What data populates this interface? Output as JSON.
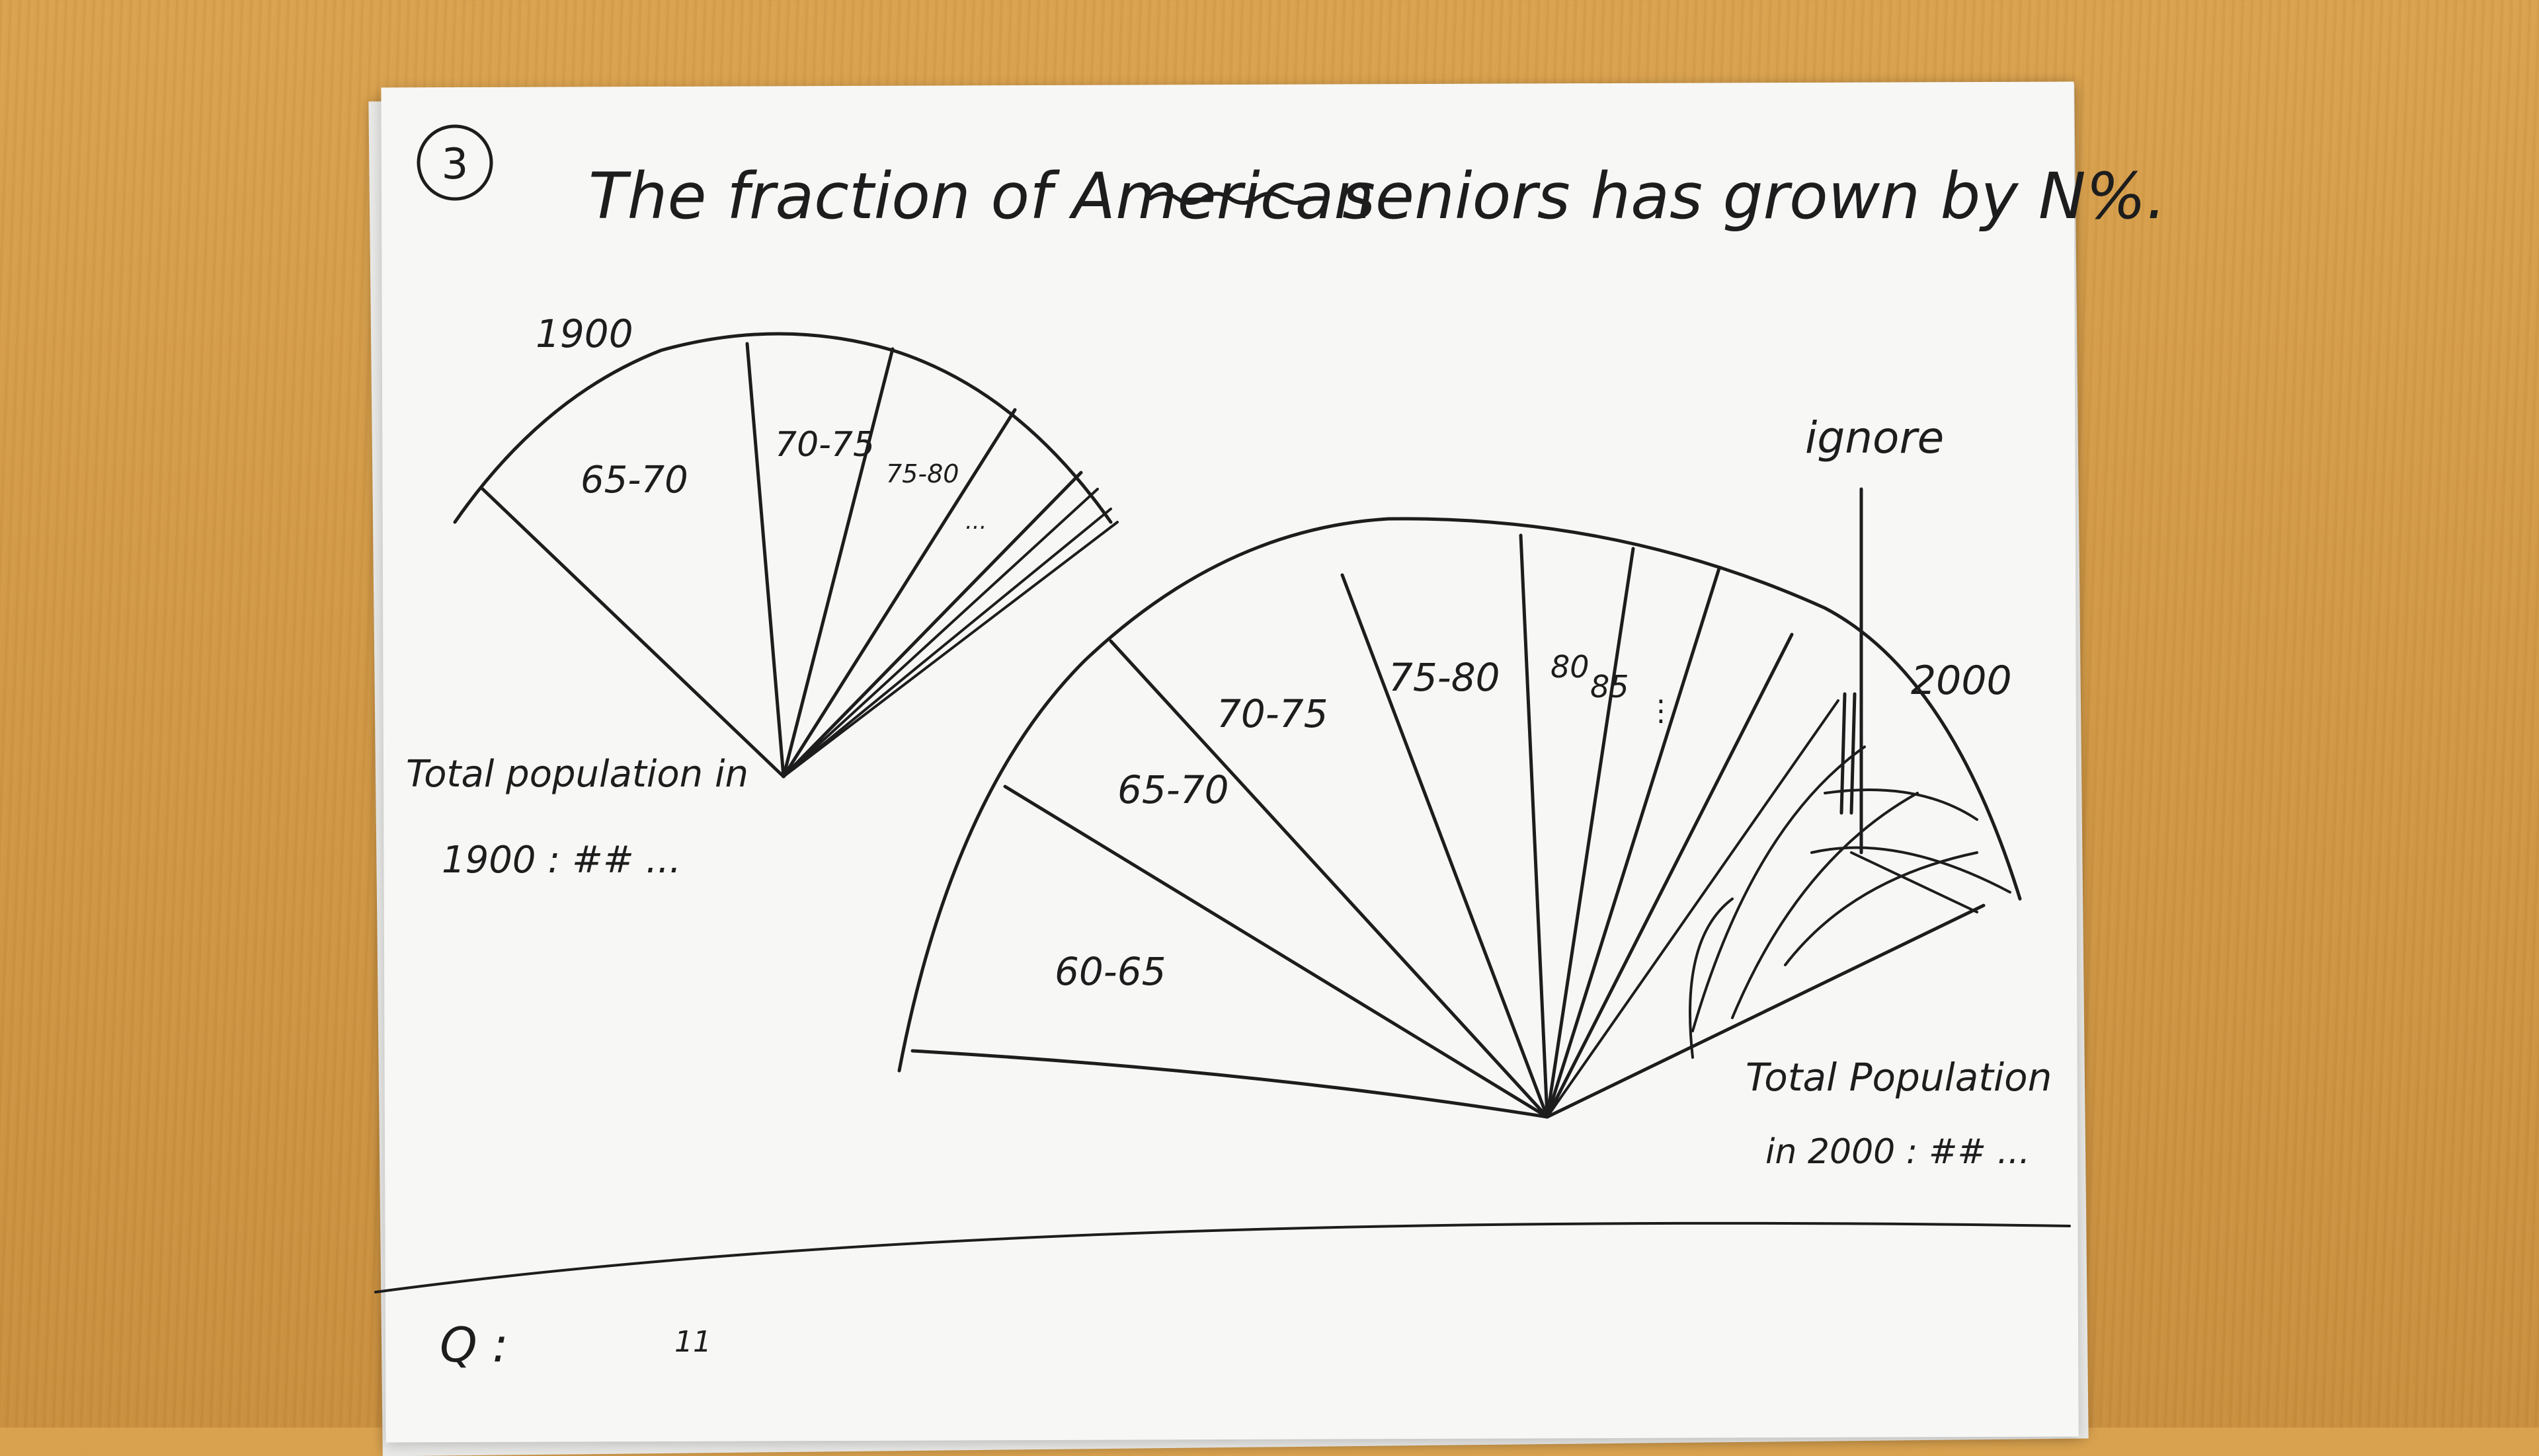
{
  "problem_number": "3",
  "title": "The fraction of American",
  "title_struck": "seniors",
  "title_rest": "seniors has grown by N%.",
  "fan_1900": {
    "year_label": "1900",
    "segments": [
      "65-70",
      "70-75",
      "75-80",
      "..."
    ]
  },
  "fan_2000": {
    "year_label": "2000",
    "segments": [
      "60-65",
      "65-70",
      "70-75",
      "75-80",
      "80",
      "85",
      "⋮"
    ]
  },
  "ignore_label": "ignore",
  "total_1900_line1": "Total population in",
  "total_1900_line2": "1900 : ## ...",
  "total_2000_line1": "Total Population",
  "total_2000_line2": "in 2000 : ## ...",
  "question_label": "Q :",
  "question_mark": "11"
}
